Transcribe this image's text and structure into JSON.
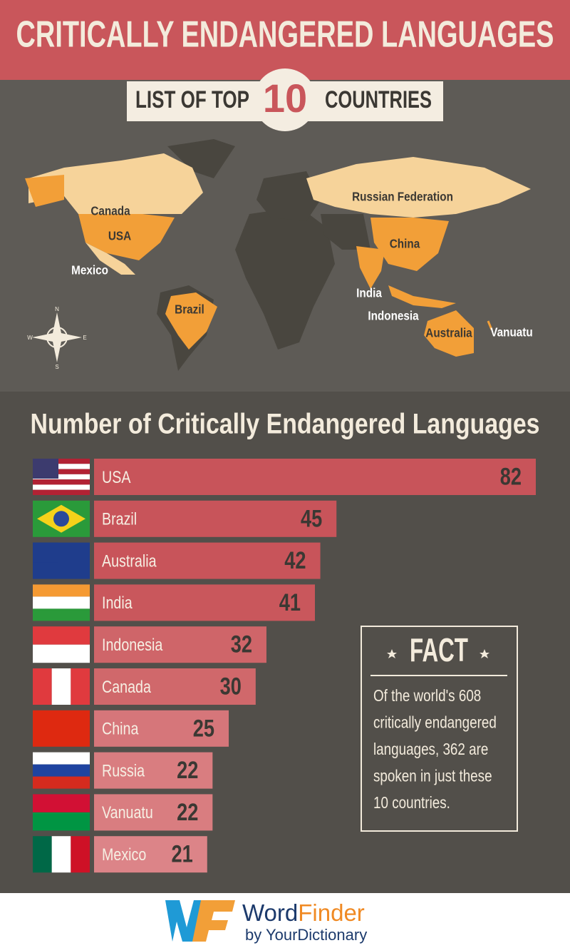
{
  "title": "CRITICALLY ENDANGERED LANGUAGES",
  "subtitle": {
    "prefix": "LIST OF TOP",
    "number": "10",
    "suffix": "COUNTRIES"
  },
  "map": {
    "labels": [
      "Canada",
      "USA",
      "Mexico",
      "Brazil",
      "Russian Federation",
      "China",
      "India",
      "Indonesia",
      "Australia",
      "Vanuatu"
    ],
    "compass": [
      "N",
      "E",
      "S",
      "W"
    ]
  },
  "chart_data": {
    "type": "bar",
    "orientation": "horizontal",
    "title": "Number of Critically Endangered Languages",
    "categories": [
      "USA",
      "Brazil",
      "Australia",
      "India",
      "Indonesia",
      "Canada",
      "China",
      "Russia",
      "Vanuatu",
      "Mexico"
    ],
    "values": [
      82,
      45,
      42,
      41,
      32,
      30,
      25,
      22,
      22,
      21
    ],
    "colors": [
      "#c8545a",
      "#c8545a",
      "#c8545a",
      "#c9575c",
      "#cf6569",
      "#d0686b",
      "#d6767a",
      "#d97d80",
      "#d97d80",
      "#dc8488"
    ]
  },
  "fact": {
    "heading": "FACT",
    "lines": [
      "Of the world's 608",
      "critically endangered",
      "languages, 362 are",
      "spoken in just these",
      "10 countries."
    ]
  },
  "logo": {
    "word": "Word",
    "finder": "Finder",
    "tagline": "by YourDictionary"
  }
}
